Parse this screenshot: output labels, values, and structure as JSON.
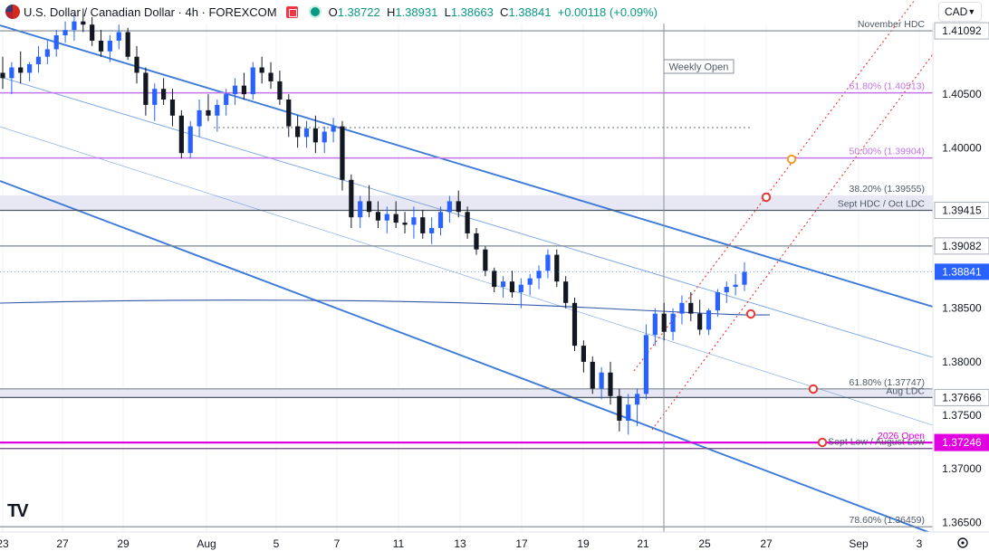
{
  "header": {
    "symbol": "U.S. Dollar / Canadian Dollar · 4h · FOREXCOM",
    "open_label": "O",
    "open": "1.38722",
    "high_label": "H",
    "high": "1.38931",
    "low_label": "L",
    "low": "1.38663",
    "close_label": "C",
    "close": "1.38841",
    "change": "+0.00118 (+0.09%)"
  },
  "currency_selector": {
    "value": "CAD",
    "icon": "chevron-down-icon"
  },
  "logo": "TV",
  "colors": {
    "up": "#2962ff",
    "down": "#131722",
    "level": "#5d6f7a",
    "fib": "#c274e6",
    "channel": "#3d7bd9",
    "magenta": "#e000e0",
    "price_tag": "#2962ff",
    "marker_red": "#e53935",
    "marker_orange": "#f59a23"
  },
  "chart_data": {
    "type": "candlestick",
    "timeframe": "4h",
    "x_ticks": [
      "23",
      "27",
      "29",
      "Aug",
      "5",
      "7",
      "11",
      "13",
      "17",
      "19",
      "21",
      "25",
      "27",
      "Sep",
      "3"
    ],
    "y_ticks": [
      "1.41092",
      "1.40500",
      "1.40000",
      "1.39415",
      "1.39082",
      "1.38841",
      "1.38500",
      "1.38000",
      "1.37666",
      "1.37500",
      "1.37246",
      "1.37000",
      "1.36500"
    ],
    "ylim": [
      1.3641,
      1.4138
    ],
    "last_price": 1.38841,
    "levels": [
      {
        "price": 1.41092,
        "label": "November HDC",
        "tag": "1.41092",
        "style": "grey"
      },
      {
        "price": 1.40513,
        "label": "61.80% (1.40513)",
        "style": "fib"
      },
      {
        "price": 1.39904,
        "label": "50.00% (1.39904)",
        "style": "fib"
      },
      {
        "price": 1.39555,
        "label": "38.20% (1.39555)",
        "style": "grey"
      },
      {
        "price": 1.39415,
        "label": "Sept HDC / Oct LDC",
        "tag": "1.39415",
        "style": "zone"
      },
      {
        "price": 1.39082,
        "tag": "1.39082",
        "style": "grey"
      },
      {
        "price": 1.37747,
        "label": "61.80% (1.37747)",
        "style": "grey"
      },
      {
        "price": 1.37666,
        "label": "Aug LDC",
        "tag": "1.37666",
        "style": "zone"
      },
      {
        "price": 1.37246,
        "label": "2026 Open",
        "tag": "1.37246",
        "style": "magenta"
      },
      {
        "price": 1.3719,
        "label": "Sept Low / August Low",
        "style": "grey"
      },
      {
        "price": 1.36459,
        "label": "78.60% (1.36459)",
        "style": "grey"
      }
    ],
    "annotations": [
      {
        "text": "Weekly Open",
        "type": "vertical-line",
        "x_label": "22"
      }
    ],
    "candles": [
      [
        1.407,
        1.4085,
        1.4055,
        1.4065
      ],
      [
        1.4065,
        1.408,
        1.405,
        1.4075
      ],
      [
        1.4075,
        1.409,
        1.406,
        1.407
      ],
      [
        1.407,
        1.408,
        1.4062,
        1.4078
      ],
      [
        1.4078,
        1.4095,
        1.407,
        1.4085
      ],
      [
        1.4085,
        1.41,
        1.4078,
        1.4092
      ],
      [
        1.4092,
        1.411,
        1.4085,
        1.4105
      ],
      [
        1.4105,
        1.4118,
        1.4098,
        1.411
      ],
      [
        1.411,
        1.4125,
        1.41,
        1.4118
      ],
      [
        1.4118,
        1.413,
        1.4108,
        1.4115
      ],
      [
        1.4115,
        1.4122,
        1.4095,
        1.41
      ],
      [
        1.41,
        1.411,
        1.4085,
        1.409
      ],
      [
        1.409,
        1.4105,
        1.408,
        1.41
      ],
      [
        1.41,
        1.4115,
        1.4092,
        1.4108
      ],
      [
        1.4108,
        1.4112,
        1.4082,
        1.4085
      ],
      [
        1.4085,
        1.4095,
        1.406,
        1.407
      ],
      [
        1.407,
        1.4075,
        1.403,
        1.404
      ],
      [
        1.404,
        1.406,
        1.4025,
        1.4055
      ],
      [
        1.4055,
        1.4065,
        1.404,
        1.4045
      ],
      [
        1.4045,
        1.4055,
        1.402,
        1.403
      ],
      [
        1.403,
        1.4035,
        1.399,
        1.3995
      ],
      [
        1.3995,
        1.4025,
        1.399,
        1.402
      ],
      [
        1.402,
        1.4045,
        1.401,
        1.4035
      ],
      [
        1.4035,
        1.405,
        1.4025,
        1.403
      ],
      [
        1.403,
        1.4045,
        1.4015,
        1.404
      ],
      [
        1.404,
        1.4055,
        1.403,
        1.405
      ],
      [
        1.405,
        1.4065,
        1.404,
        1.4058
      ],
      [
        1.4058,
        1.407,
        1.4045,
        1.405
      ],
      [
        1.405,
        1.408,
        1.4045,
        1.4075
      ],
      [
        1.4075,
        1.4085,
        1.406,
        1.407
      ],
      [
        1.407,
        1.408,
        1.4055,
        1.4062
      ],
      [
        1.4062,
        1.4072,
        1.404,
        1.4045
      ],
      [
        1.4045,
        1.405,
        1.401,
        1.402
      ],
      [
        1.402,
        1.403,
        1.4,
        1.401
      ],
      [
        1.401,
        1.4025,
        1.4,
        1.4018
      ],
      [
        1.4018,
        1.403,
        1.3995,
        1.4005
      ],
      [
        1.4005,
        1.402,
        1.3995,
        1.4015
      ],
      [
        1.4015,
        1.4028,
        1.4005,
        1.402
      ],
      [
        1.402,
        1.4025,
        1.396,
        1.397
      ],
      [
        1.397,
        1.3975,
        1.3925,
        1.3935
      ],
      [
        1.3935,
        1.3955,
        1.3925,
        1.395
      ],
      [
        1.395,
        1.3965,
        1.3935,
        1.394
      ],
      [
        1.394,
        1.395,
        1.3925,
        1.3932
      ],
      [
        1.3932,
        1.3945,
        1.392,
        1.3938
      ],
      [
        1.3938,
        1.395,
        1.3925,
        1.393
      ],
      [
        1.393,
        1.394,
        1.392,
        1.3928
      ],
      [
        1.3928,
        1.3945,
        1.3915,
        1.3935
      ],
      [
        1.3935,
        1.3942,
        1.3915,
        1.392
      ],
      [
        1.392,
        1.3935,
        1.391,
        1.3925
      ],
      [
        1.3925,
        1.3945,
        1.3918,
        1.394
      ],
      [
        1.394,
        1.3955,
        1.393,
        1.395
      ],
      [
        1.395,
        1.396,
        1.3935,
        1.394
      ],
      [
        1.394,
        1.3945,
        1.3915,
        1.392
      ],
      [
        1.392,
        1.3925,
        1.39,
        1.3905
      ],
      [
        1.3905,
        1.3908,
        1.388,
        1.3885
      ],
      [
        1.3885,
        1.3888,
        1.3865,
        1.387
      ],
      [
        1.387,
        1.388,
        1.386,
        1.3875
      ],
      [
        1.3875,
        1.3885,
        1.386,
        1.3865
      ],
      [
        1.3865,
        1.3878,
        1.385,
        1.3872
      ],
      [
        1.3872,
        1.3882,
        1.3862,
        1.3878
      ],
      [
        1.3878,
        1.389,
        1.3868,
        1.3885
      ],
      [
        1.3885,
        1.3905,
        1.3878,
        1.39
      ],
      [
        1.39,
        1.3905,
        1.387,
        1.3875
      ],
      [
        1.3875,
        1.388,
        1.385,
        1.3855
      ],
      [
        1.3855,
        1.386,
        1.381,
        1.3815
      ],
      [
        1.3815,
        1.382,
        1.379,
        1.38
      ],
      [
        1.38,
        1.3805,
        1.377,
        1.3775
      ],
      [
        1.3775,
        1.3795,
        1.3765,
        1.379
      ],
      [
        1.379,
        1.38,
        1.376,
        1.3768
      ],
      [
        1.3768,
        1.3775,
        1.3735,
        1.3745
      ],
      [
        1.3745,
        1.377,
        1.3732,
        1.376
      ],
      [
        1.376,
        1.3775,
        1.374,
        1.377
      ],
      [
        1.377,
        1.3835,
        1.3765,
        1.3825
      ],
      [
        1.3825,
        1.385,
        1.3815,
        1.3845
      ],
      [
        1.3845,
        1.3855,
        1.382,
        1.3828
      ],
      [
        1.3828,
        1.385,
        1.382,
        1.3845
      ],
      [
        1.3845,
        1.3862,
        1.3835,
        1.3855
      ],
      [
        1.3855,
        1.3865,
        1.3838,
        1.3845
      ],
      [
        1.3845,
        1.3858,
        1.3825,
        1.383
      ],
      [
        1.383,
        1.385,
        1.3825,
        1.3848
      ],
      [
        1.3848,
        1.3868,
        1.3842,
        1.3865
      ],
      [
        1.3865,
        1.3875,
        1.3855,
        1.387
      ],
      [
        1.387,
        1.3882,
        1.3862,
        1.3872
      ],
      [
        1.3872,
        1.3893,
        1.3866,
        1.3884
      ]
    ]
  }
}
